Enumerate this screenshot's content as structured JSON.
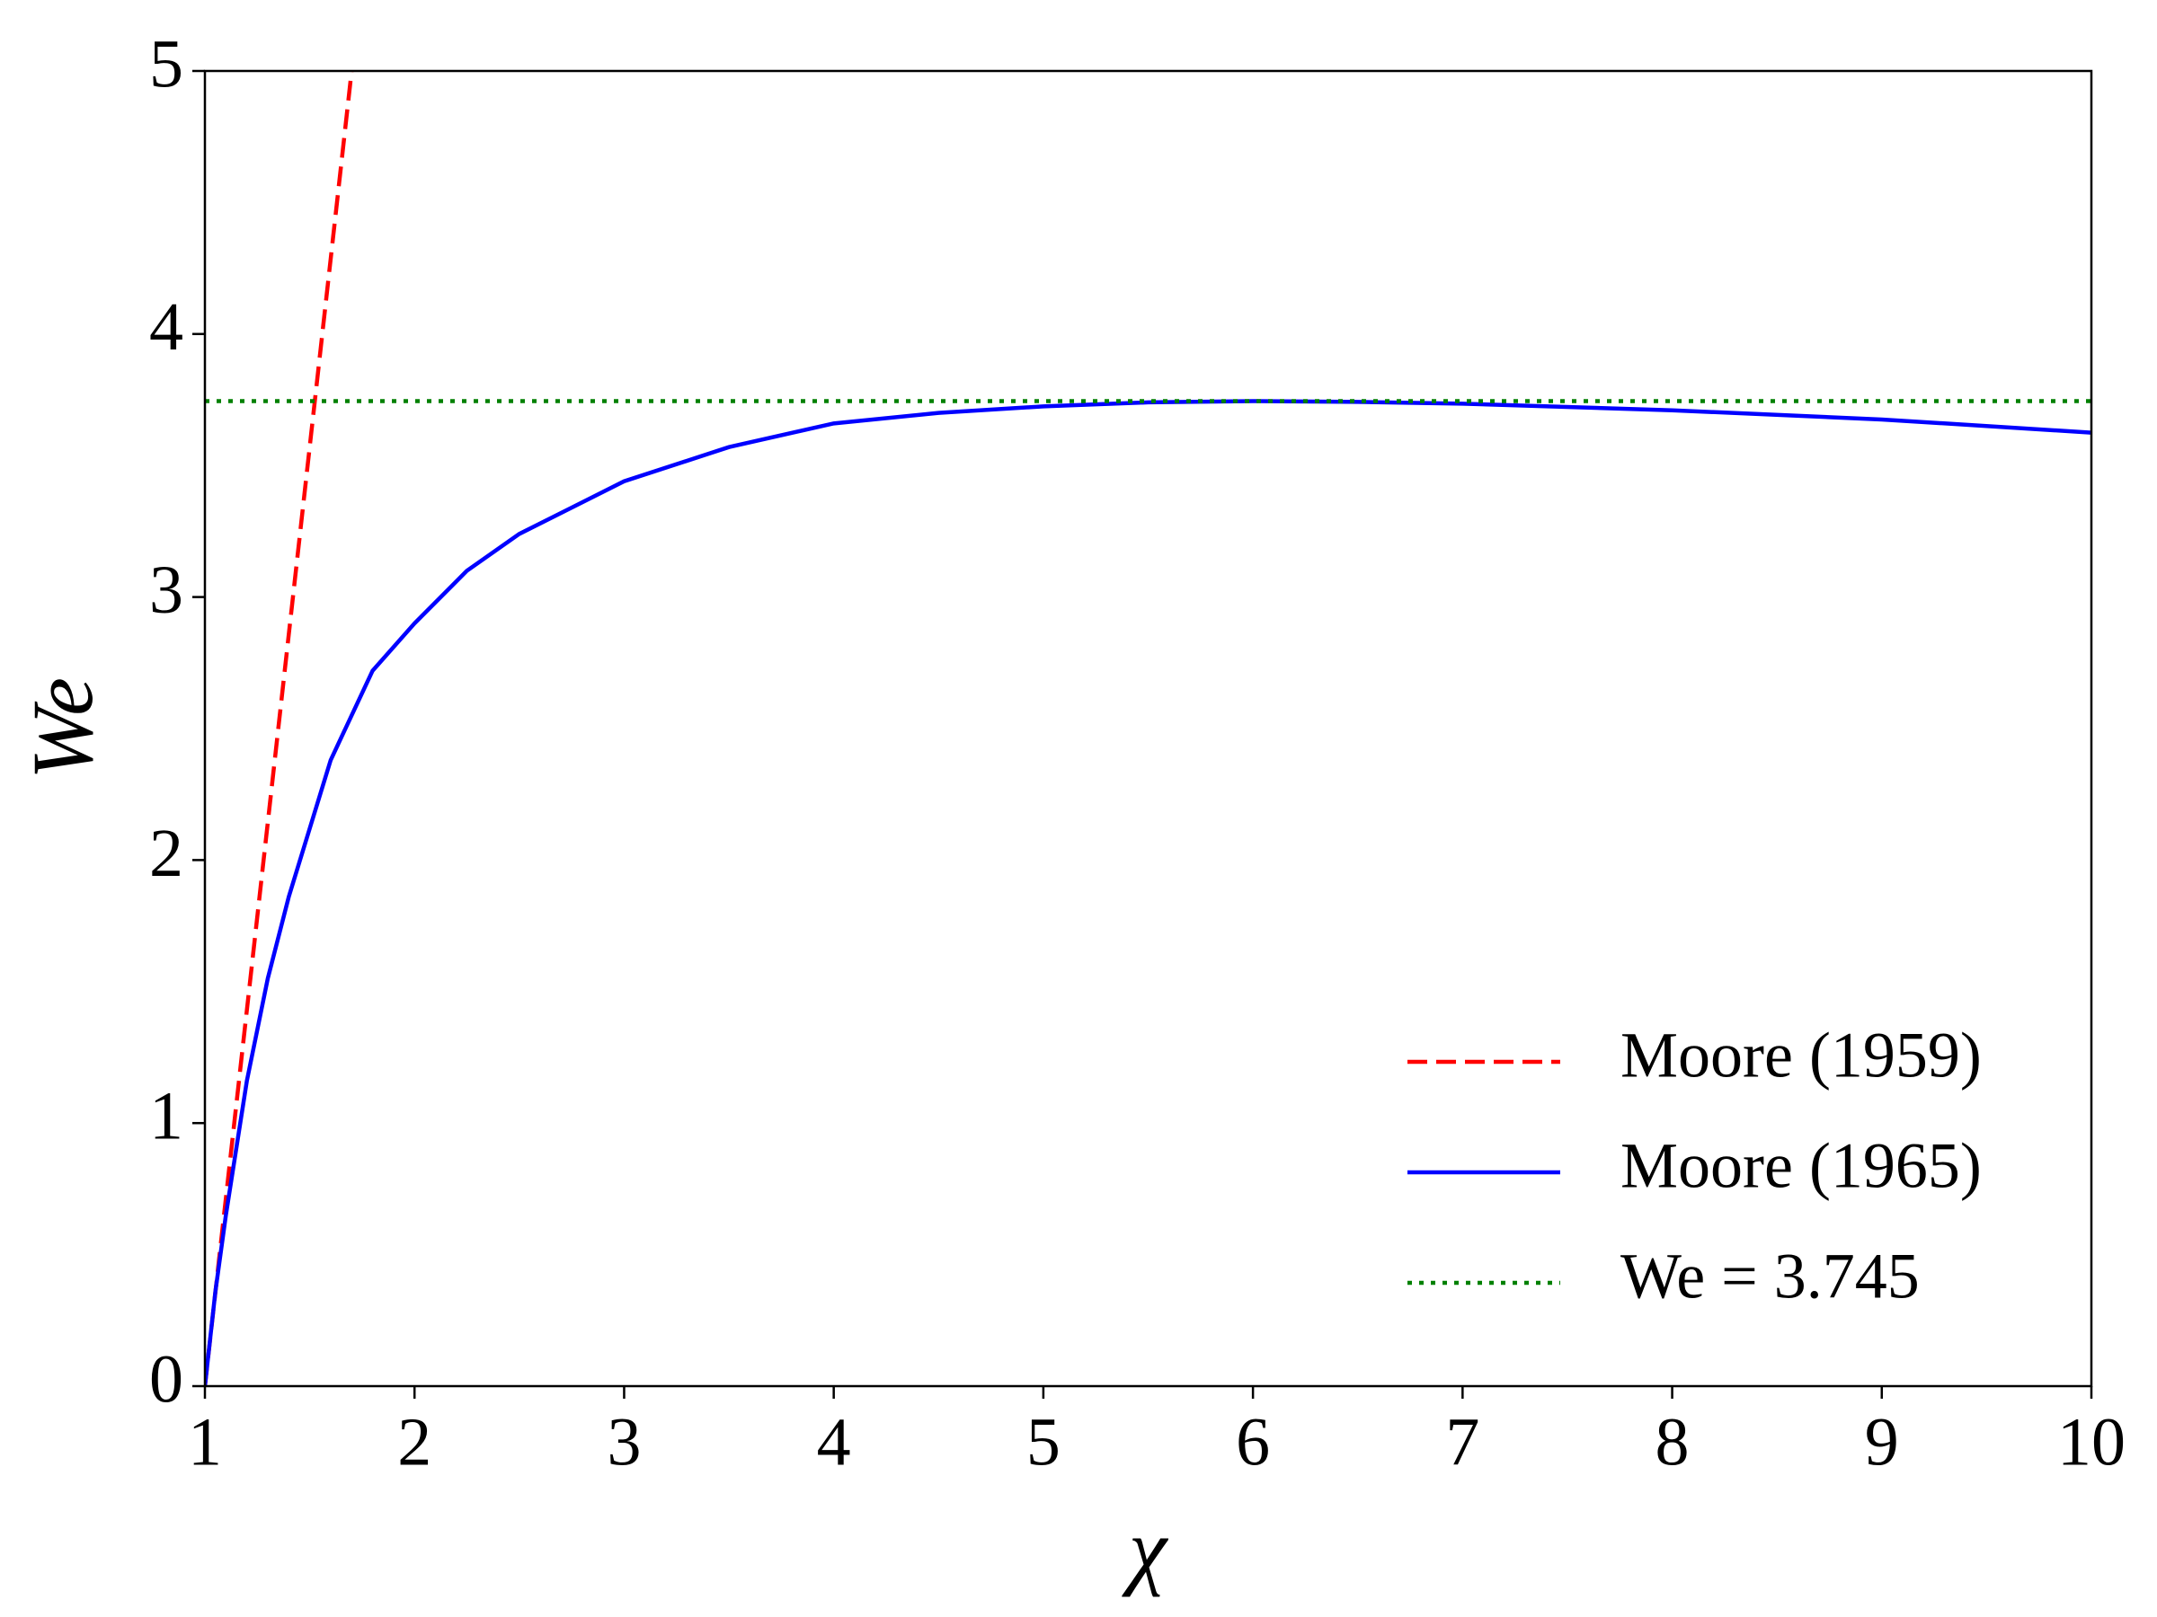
{
  "chart_data": {
    "type": "line",
    "xlabel": "χ",
    "ylabel": "We",
    "xlim": [
      1,
      10
    ],
    "ylim": [
      0,
      5
    ],
    "xticks": [
      1,
      2,
      3,
      4,
      5,
      6,
      7,
      8,
      9,
      10
    ],
    "yticks": [
      0,
      1,
      2,
      3,
      4,
      5
    ],
    "legend": "lower right",
    "series": [
      {
        "name": "Moore (1959)",
        "color": "#ff0000",
        "linestyle": "dashed",
        "x": [
          1,
          1.7
        ],
        "values": [
          0,
          5
        ]
      },
      {
        "name": "Moore (1965)",
        "color": "#0000ff",
        "linestyle": "solid",
        "x": [
          1,
          1.05,
          1.1,
          1.2,
          1.3,
          1.4,
          1.5,
          1.6,
          1.8,
          2,
          2.25,
          2.5,
          3,
          3.5,
          4,
          4.5,
          5,
          5.5,
          6,
          6.5,
          7,
          8,
          9,
          10
        ],
        "values": [
          0,
          0.36,
          0.65,
          1.16,
          1.55,
          1.86,
          2.12,
          2.38,
          2.72,
          2.9,
          3.1,
          3.24,
          3.44,
          3.57,
          3.66,
          3.7,
          3.725,
          3.74,
          3.745,
          3.742,
          3.735,
          3.71,
          3.675,
          3.625
        ]
      },
      {
        "name": "We = 3.745",
        "color": "#008000",
        "linestyle": "dotted",
        "x": [
          1,
          10
        ],
        "values": [
          3.745,
          3.745
        ]
      }
    ]
  }
}
